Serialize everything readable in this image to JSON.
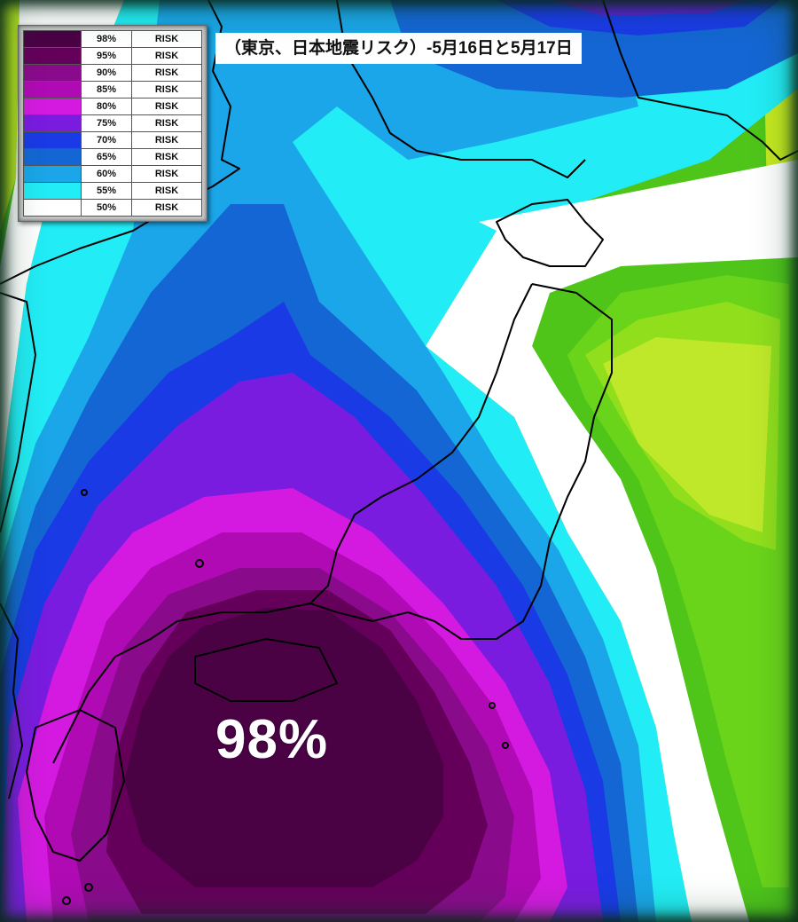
{
  "title": "（東京、日本地震リスク）-5月16日と5月17日",
  "center_label": "98%",
  "legend": {
    "rows": [
      {
        "percent": "98%",
        "label": "RISK",
        "color": "#4a0245"
      },
      {
        "percent": "95%",
        "label": "RISK",
        "color": "#64005a"
      },
      {
        "percent": "90%",
        "label": "RISK",
        "color": "#8a0a8c"
      },
      {
        "percent": "85%",
        "label": "RISK",
        "color": "#b00ab5"
      },
      {
        "percent": "80%",
        "label": "RISK",
        "color": "#d41ae0"
      },
      {
        "percent": "75%",
        "label": "RISK",
        "color": "#7a1be0"
      },
      {
        "percent": "70%",
        "label": "RISK",
        "color": "#1a3ae6"
      },
      {
        "percent": "65%",
        "label": "RISK",
        "color": "#1466d4"
      },
      {
        "percent": "60%",
        "label": "RISK",
        "color": "#1aa6e8"
      },
      {
        "percent": "55%",
        "label": "RISK",
        "color": "#22ecf5"
      },
      {
        "percent": "50%",
        "label": "RISK",
        "color": "#ffffff"
      }
    ]
  },
  "colors": {
    "green_light": "#86e01a",
    "green_mid": "#5ad01a",
    "green_dark": "#3cbf14",
    "yellow_green": "#c6ea1f",
    "coast": "#000000"
  }
}
